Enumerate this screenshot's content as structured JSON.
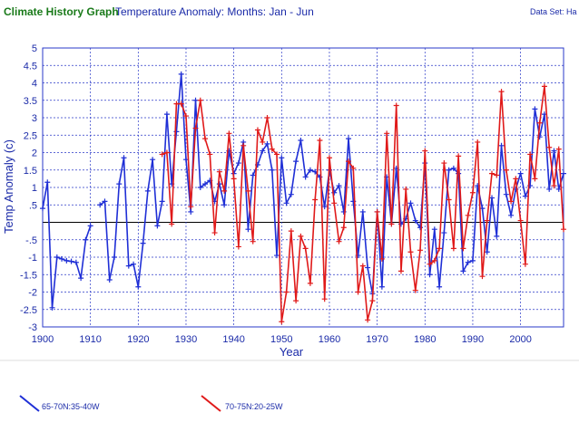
{
  "header": {
    "app_title": "Climate History Graph",
    "subtitle": "Temperature Anomaly: Months: Jan - Jun",
    "dataset_label": "Data Set: Ha"
  },
  "colors": {
    "series1": "#1f2fd6",
    "series2": "#e01a1a",
    "grid": "#2a38c8",
    "axis_text": "#1a2aa8",
    "zero_line": "#000000"
  },
  "chart_data": {
    "type": "line",
    "xlabel": "Year",
    "ylabel": "Temp Anomaly (c)",
    "xlim": [
      1900,
      2009
    ],
    "ylim": [
      -3,
      5
    ],
    "x_ticks": [
      1900,
      1910,
      1920,
      1930,
      1940,
      1950,
      1960,
      1970,
      1980,
      1990,
      2000
    ],
    "y_ticks": [
      5,
      4.5,
      4,
      3.5,
      3,
      2.5,
      2,
      1.5,
      1,
      0.5,
      0,
      -0.5,
      -1,
      -1.5,
      -2,
      -2.5,
      -3
    ],
    "y_tick_labels": [
      "5",
      "4.5",
      "4",
      "3.5",
      "3",
      "2.5",
      "2",
      "1.5",
      "1",
      ".5",
      "",
      "-.5",
      "-1",
      "-1.5",
      "-2",
      "-2.5",
      "-3"
    ],
    "grid": true,
    "legend_position": "bottom",
    "series": [
      {
        "name": "65-70N:35-40W",
        "color": "#1f2fd6",
        "segments": [
          [
            [
              1900,
              0.4
            ],
            [
              1901,
              1.15
            ],
            [
              1902,
              -2.45
            ],
            [
              1903,
              -1.0
            ],
            [
              1904,
              -1.05
            ],
            [
              1905,
              -1.1
            ],
            [
              1906,
              -1.12
            ],
            [
              1907,
              -1.15
            ],
            [
              1908,
              -1.6
            ],
            [
              1909,
              -0.5
            ],
            [
              1910,
              -0.1
            ]
          ],
          [
            [
              1912,
              0.5
            ],
            [
              1913,
              0.6
            ],
            [
              1914,
              -1.65
            ],
            [
              1915,
              -1.0
            ],
            [
              1916,
              1.1
            ],
            [
              1917,
              1.85
            ],
            [
              1918,
              -1.25
            ],
            [
              1919,
              -1.2
            ],
            [
              1920,
              -1.85
            ],
            [
              1921,
              -0.6
            ],
            [
              1922,
              0.9
            ],
            [
              1923,
              1.8
            ],
            [
              1924,
              -0.1
            ],
            [
              1925,
              0.6
            ],
            [
              1926,
              3.1
            ],
            [
              1927,
              1.1
            ],
            [
              1928,
              2.6
            ],
            [
              1929,
              4.25
            ],
            [
              1930,
              1.8
            ],
            [
              1931,
              0.3
            ],
            [
              1932,
              3.5
            ],
            [
              1933,
              1.0
            ],
            [
              1934,
              1.1
            ],
            [
              1935,
              1.2
            ],
            [
              1936,
              0.6
            ],
            [
              1937,
              1.1
            ],
            [
              1938,
              0.5
            ],
            [
              1939,
              2.05
            ],
            [
              1940,
              1.4
            ],
            [
              1941,
              1.7
            ],
            [
              1942,
              2.3
            ],
            [
              1943,
              -0.2
            ],
            [
              1944,
              1.35
            ],
            [
              1945,
              1.65
            ],
            [
              1946,
              2.05
            ],
            [
              1947,
              2.25
            ],
            [
              1948,
              1.5
            ],
            [
              1949,
              -0.95
            ],
            [
              1950,
              1.85
            ],
            [
              1951,
              0.55
            ],
            [
              1952,
              0.8
            ],
            [
              1953,
              1.75
            ],
            [
              1954,
              2.35
            ],
            [
              1955,
              1.3
            ],
            [
              1956,
              1.5
            ],
            [
              1957,
              1.45
            ],
            [
              1958,
              1.3
            ],
            [
              1959,
              0.45
            ],
            [
              1960,
              1.5
            ],
            [
              1961,
              0.85
            ],
            [
              1962,
              1.05
            ],
            [
              1963,
              0.3
            ],
            [
              1964,
              2.4
            ],
            [
              1965,
              0.6
            ],
            [
              1966,
              -0.95
            ],
            [
              1967,
              0.3
            ],
            [
              1968,
              -1.3
            ],
            [
              1969,
              -2.05
            ],
            [
              1970,
              0.3
            ],
            [
              1971,
              -1.85
            ],
            [
              1972,
              1.3
            ],
            [
              1973,
              -0.05
            ],
            [
              1974,
              1.55
            ],
            [
              1975,
              -0.05
            ],
            [
              1976,
              0.1
            ],
            [
              1977,
              0.55
            ],
            [
              1978,
              0.05
            ],
            [
              1979,
              -0.15
            ],
            [
              1980,
              1.7
            ],
            [
              1981,
              -1.5
            ],
            [
              1982,
              -0.2
            ],
            [
              1983,
              -1.85
            ],
            [
              1984,
              -0.3
            ],
            [
              1985,
              1.5
            ],
            [
              1986,
              1.55
            ],
            [
              1987,
              1.4
            ],
            [
              1988,
              -1.4
            ],
            [
              1989,
              -1.15
            ],
            [
              1990,
              -1.1
            ],
            [
              1991,
              1.05
            ],
            [
              1992,
              0.4
            ],
            [
              1993,
              -0.85
            ],
            [
              1994,
              0.7
            ],
            [
              1995,
              -0.4
            ],
            [
              1996,
              2.2
            ],
            [
              1997,
              0.8
            ],
            [
              1998,
              0.2
            ],
            [
              1999,
              0.95
            ],
            [
              2000,
              1.4
            ],
            [
              2001,
              0.75
            ],
            [
              2002,
              1.05
            ],
            [
              2003,
              3.25
            ],
            [
              2004,
              2.45
            ],
            [
              2005,
              3.1
            ],
            [
              2006,
              0.95
            ],
            [
              2007,
              2.05
            ],
            [
              2008,
              0.95
            ],
            [
              2009,
              1.4
            ]
          ]
        ]
      },
      {
        "name": "70-75N:20-25W",
        "color": "#e01a1a",
        "segments": [
          [
            [
              1925,
              1.95
            ],
            [
              1926,
              2.0
            ],
            [
              1927,
              -0.05
            ],
            [
              1928,
              3.4
            ],
            [
              1929,
              3.4
            ],
            [
              1930,
              3.05
            ],
            [
              1931,
              0.45
            ],
            [
              1932,
              2.7
            ],
            [
              1933,
              3.5
            ],
            [
              1934,
              2.4
            ],
            [
              1935,
              1.95
            ],
            [
              1936,
              -0.3
            ],
            [
              1937,
              1.45
            ],
            [
              1938,
              0.9
            ],
            [
              1939,
              2.55
            ],
            [
              1940,
              1.25
            ],
            [
              1941,
              -0.7
            ],
            [
              1942,
              2.2
            ],
            [
              1943,
              0.9
            ],
            [
              1944,
              -0.55
            ],
            [
              1945,
              2.65
            ],
            [
              1946,
              2.3
            ],
            [
              1947,
              3.0
            ],
            [
              1948,
              2.1
            ],
            [
              1949,
              1.95
            ],
            [
              1950,
              -2.85
            ],
            [
              1951,
              -2.0
            ],
            [
              1952,
              -0.25
            ],
            [
              1953,
              -2.25
            ],
            [
              1954,
              -0.4
            ],
            [
              1955,
              -0.75
            ],
            [
              1956,
              -1.75
            ],
            [
              1957,
              0.65
            ],
            [
              1958,
              2.35
            ],
            [
              1959,
              -2.2
            ],
            [
              1960,
              1.85
            ],
            [
              1961,
              0.55
            ],
            [
              1962,
              -0.55
            ],
            [
              1963,
              -0.15
            ],
            [
              1964,
              1.75
            ],
            [
              1965,
              1.55
            ],
            [
              1966,
              -2.0
            ],
            [
              1967,
              -1.25
            ],
            [
              1968,
              -2.8
            ],
            [
              1969,
              -2.25
            ],
            [
              1970,
              0.3
            ],
            [
              1971,
              -1.05
            ],
            [
              1972,
              2.55
            ],
            [
              1973,
              -0.05
            ],
            [
              1974,
              3.35
            ],
            [
              1975,
              -1.4
            ],
            [
              1976,
              0.95
            ],
            [
              1977,
              -0.85
            ],
            [
              1978,
              -1.95
            ],
            [
              1979,
              -0.8
            ],
            [
              1980,
              2.05
            ],
            [
              1981,
              -1.2
            ],
            [
              1982,
              -1.1
            ],
            [
              1983,
              -0.75
            ],
            [
              1984,
              1.7
            ],
            [
              1985,
              0.65
            ],
            [
              1986,
              -0.75
            ],
            [
              1987,
              1.9
            ],
            [
              1988,
              -0.75
            ],
            [
              1989,
              0.2
            ],
            [
              1990,
              0.85
            ],
            [
              1991,
              2.3
            ],
            [
              1992,
              -1.55
            ],
            [
              1993,
              0.05
            ],
            [
              1994,
              1.4
            ],
            [
              1995,
              1.35
            ],
            [
              1996,
              3.75
            ],
            [
              1997,
              1.5
            ],
            [
              1998,
              0.6
            ],
            [
              1999,
              1.25
            ],
            [
              2000,
              0.05
            ],
            [
              2001,
              -1.2
            ],
            [
              2002,
              1.95
            ],
            [
              2003,
              1.25
            ],
            [
              2004,
              2.85
            ],
            [
              2005,
              3.9
            ],
            [
              2006,
              2.15
            ],
            [
              2007,
              1.05
            ],
            [
              2008,
              2.1
            ],
            [
              2009,
              -0.2
            ]
          ]
        ]
      }
    ]
  }
}
